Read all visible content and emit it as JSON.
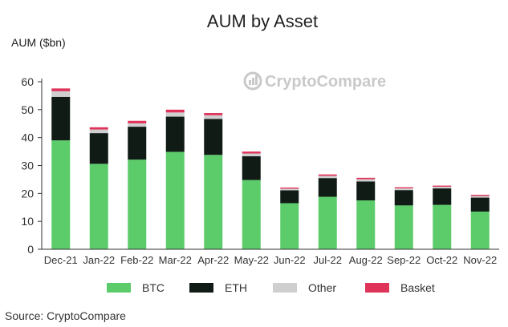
{
  "watermark": "CryptoCompare",
  "source": "Source: CryptoCompare",
  "colors": {
    "BTC": "#5ccb6a",
    "ETH": "#101b16",
    "Other": "#cfcfcf",
    "Basket": "#e0335a"
  },
  "chart_data": {
    "type": "bar",
    "stacked": true,
    "title": "AUM by Asset",
    "ylabel": "AUM ($bn)",
    "xlabel": "",
    "ylim": [
      0,
      60
    ],
    "yticks": [
      0,
      10,
      20,
      30,
      40,
      50,
      60
    ],
    "grid": false,
    "legend": "bottom",
    "categories": [
      "Dec-21",
      "Jan-22",
      "Feb-22",
      "Mar-22",
      "Apr-22",
      "May-22",
      "Jun-22",
      "Jul-22",
      "Aug-22",
      "Sep-22",
      "Oct-22",
      "Nov-22"
    ],
    "series": [
      {
        "name": "BTC",
        "values": [
          39.0,
          30.6,
          32.1,
          34.9,
          33.8,
          24.8,
          16.5,
          18.8,
          17.5,
          15.7,
          15.9,
          13.5
        ]
      },
      {
        "name": "ETH",
        "values": [
          15.6,
          11.0,
          11.8,
          12.6,
          12.9,
          8.5,
          4.6,
          6.7,
          6.8,
          5.5,
          5.9,
          5.0
        ]
      },
      {
        "name": "Other",
        "values": [
          2.0,
          1.3,
          1.2,
          1.5,
          1.3,
          1.0,
          0.6,
          0.8,
          0.8,
          0.6,
          0.6,
          0.6
        ]
      },
      {
        "name": "Basket",
        "values": [
          1.0,
          0.8,
          0.9,
          1.0,
          0.8,
          0.7,
          0.4,
          0.5,
          0.5,
          0.4,
          0.4,
          0.4
        ]
      }
    ]
  }
}
